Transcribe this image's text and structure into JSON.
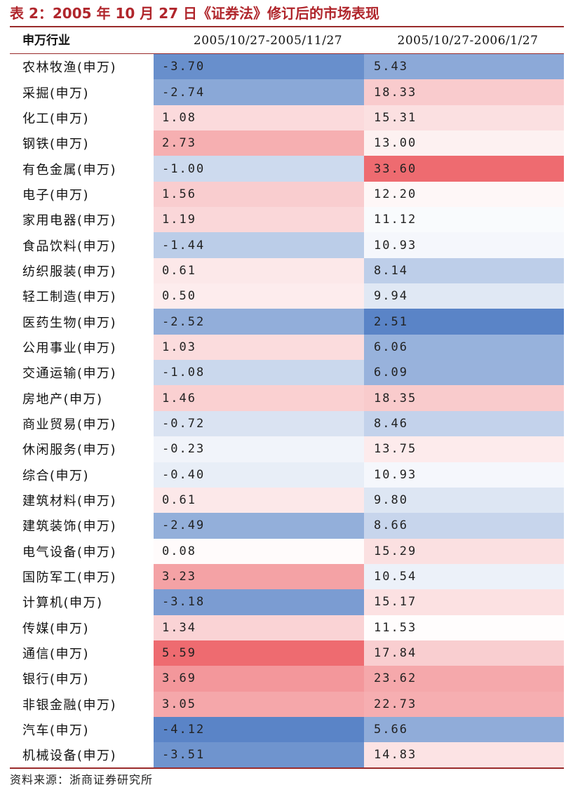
{
  "title": "表 2：2005 年 10 月 27 日《证券法》修订后的市场表现",
  "colors": {
    "title_red": "#b0262c",
    "rule": "#9a2b2b",
    "negative_max": "#5a84c7",
    "positive_max": "#ee6b70",
    "neutral": "#ffffff"
  },
  "headers": [
    "申万行业",
    "2005/10/27-2005/11/27",
    "2005/10/27-2006/1/27"
  ],
  "rows": [
    {
      "industry": "农林牧渔(申万)",
      "p1": "-3.70",
      "p2": "5.43"
    },
    {
      "industry": "采掘(申万)",
      "p1": "-2.74",
      "p2": "18.33"
    },
    {
      "industry": "化工(申万)",
      "p1": "1.08",
      "p2": "15.31"
    },
    {
      "industry": "钢铁(申万)",
      "p1": "2.73",
      "p2": "13.00"
    },
    {
      "industry": "有色金属(申万)",
      "p1": "-1.00",
      "p2": "33.60"
    },
    {
      "industry": "电子(申万)",
      "p1": "1.56",
      "p2": "12.20"
    },
    {
      "industry": "家用电器(申万)",
      "p1": "1.19",
      "p2": "11.12"
    },
    {
      "industry": "食品饮料(申万)",
      "p1": "-1.44",
      "p2": "10.93"
    },
    {
      "industry": "纺织服装(申万)",
      "p1": "0.61",
      "p2": "8.14"
    },
    {
      "industry": "轻工制造(申万)",
      "p1": "0.50",
      "p2": "9.94"
    },
    {
      "industry": "医药生物(申万)",
      "p1": "-2.52",
      "p2": "2.51"
    },
    {
      "industry": "公用事业(申万)",
      "p1": "1.03",
      "p2": "6.06"
    },
    {
      "industry": "交通运输(申万)",
      "p1": "-1.08",
      "p2": "6.09"
    },
    {
      "industry": "房地产(申万)",
      "p1": "1.46",
      "p2": "18.35"
    },
    {
      "industry": "商业贸易(申万)",
      "p1": "-0.72",
      "p2": "8.46"
    },
    {
      "industry": "休闲服务(申万)",
      "p1": "-0.23",
      "p2": "13.75"
    },
    {
      "industry": "综合(申万)",
      "p1": "-0.40",
      "p2": "10.93"
    },
    {
      "industry": "建筑材料(申万)",
      "p1": "0.61",
      "p2": "9.80"
    },
    {
      "industry": "建筑装饰(申万)",
      "p1": "-2.49",
      "p2": "8.66"
    },
    {
      "industry": "电气设备(申万)",
      "p1": "0.08",
      "p2": "15.29"
    },
    {
      "industry": "国防军工(申万)",
      "p1": "3.23",
      "p2": "10.54"
    },
    {
      "industry": "计算机(申万)",
      "p1": "-3.18",
      "p2": "15.17"
    },
    {
      "industry": "传媒(申万)",
      "p1": "1.34",
      "p2": "11.53"
    },
    {
      "industry": "通信(申万)",
      "p1": "5.59",
      "p2": "17.84"
    },
    {
      "industry": "银行(申万)",
      "p1": "3.69",
      "p2": "23.62"
    },
    {
      "industry": "非银金融(申万)",
      "p1": "3.05",
      "p2": "22.73"
    },
    {
      "industry": "汽车(申万)",
      "p1": "-4.12",
      "p2": "5.66"
    },
    {
      "industry": "机械设备(申万)",
      "p1": "-3.51",
      "p2": "14.83"
    }
  ],
  "source": "资料来源：浙商证券研究所"
}
